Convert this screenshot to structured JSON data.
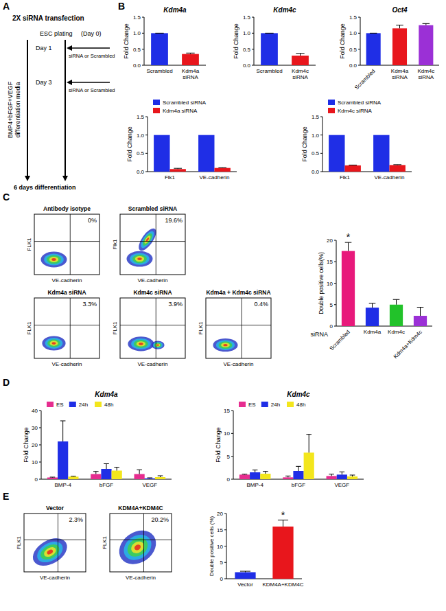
{
  "panel_labels": [
    "A",
    "B",
    "C",
    "D",
    "E"
  ],
  "diagram": {
    "title": "2X siRNA transfection",
    "plating": "ESC plating",
    "plating_day": "(Day 0)",
    "steps": [
      {
        "day": "Day 1",
        "label": "siRNA or Scrambled"
      },
      {
        "day": "Day 3",
        "label": "siRNA or Scrambled"
      }
    ],
    "media": [
      "BMP4+bFGF+VEGF",
      "differentiation media"
    ],
    "end": "6 days differentiation"
  },
  "chart_data": [
    {
      "type": "bar",
      "title": "Kdm4a",
      "y_label": "Fold Change",
      "categories": [
        "Scrambled",
        "Kdm4a siRNA"
      ],
      "values": [
        1,
        0.35
      ],
      "errors": [
        0,
        0.03
      ],
      "colors": [
        "#1f2ee6",
        "#e8161c"
      ],
      "ylim": [
        0,
        1.5
      ],
      "yticks": [
        {
          "value": 0,
          "label": "0.0"
        },
        0.5,
        {
          "value": 1,
          "label": "1.0"
        },
        1.5
      ]
    },
    {
      "type": "bar",
      "title": "Kdm4c",
      "y_label": "Fold Change",
      "categories": [
        "Scrambled",
        "Kdm4c siRNA"
      ],
      "values": [
        1,
        0.3
      ],
      "errors": [
        0,
        0.07
      ],
      "colors": [
        "#1f2ee6",
        "#e8161c"
      ],
      "ylim": [
        0,
        1.5
      ],
      "yticks": [
        {
          "value": 0,
          "label": "0.0"
        },
        0.5,
        {
          "value": 1,
          "label": "1.0"
        },
        1.5
      ]
    },
    {
      "type": "bar",
      "title": "Oct4",
      "y_label": "Fold Change",
      "categories": [
        "Scrambled",
        "Kdm4a siRNA",
        "Kdm4c siRNA"
      ],
      "values": [
        1,
        1.15,
        1.25
      ],
      "errors": [
        0,
        0.1,
        0.05
      ],
      "colors": [
        "#1f2ee6",
        "#e8161c",
        "#9b30d6"
      ],
      "ylim": [
        0,
        1.5
      ],
      "yticks": [
        {
          "value": 0,
          "label": "0.0"
        },
        0.5,
        {
          "value": 1,
          "label": "1.0"
        },
        1.5
      ]
    },
    {
      "type": "bar",
      "y_label": "Fold Change",
      "categories": [
        "Flk1",
        "VE-cadherin"
      ],
      "legend": "top",
      "series": [
        {
          "name": "Scrambled siRNA",
          "color": "#1f2ee6",
          "values": [
            1,
            1
          ]
        },
        {
          "name": "Kdm4a siRNA",
          "color": "#e8161c",
          "values": [
            0.07,
            0.1
          ],
          "errors": [
            0.02,
            0.01
          ]
        }
      ],
      "ylim": [
        0,
        1.5
      ],
      "yticks": [
        {
          "value": 0,
          "label": "0.0"
        },
        0.5,
        {
          "value": 1,
          "label": "1.0"
        },
        1.5
      ]
    },
    {
      "type": "bar",
      "y_label": "Fold Change",
      "categories": [
        "Flk1",
        "VE-cadherin"
      ],
      "legend": "top",
      "series": [
        {
          "name": "Scrambled siRNA",
          "color": "#1f2ee6",
          "values": [
            1,
            1
          ]
        },
        {
          "name": "Kdm4c siRNA",
          "color": "#e8161c",
          "values": [
            0.17,
            0.18
          ],
          "errors": [
            0.01,
            0.01
          ]
        }
      ],
      "ylim": [
        0,
        1.5
      ],
      "yticks": [
        {
          "value": 0,
          "label": "0.0"
        },
        0.5,
        {
          "value": 1,
          "label": "1.0"
        },
        1.5
      ]
    },
    {
      "type": "bar",
      "y_label": "Double positive cells(%)",
      "x_label": "siRNA",
      "categories": [
        "Scrambled",
        "Kdm4a",
        "Kdm4c",
        "Kdm4a+Kdm4c"
      ],
      "values": [
        17.5,
        4.3,
        5.0,
        2.4
      ],
      "errors": [
        2,
        1,
        1.2,
        2
      ],
      "colors": [
        "#e8197b",
        "#1f2ee6",
        "#22c22a",
        "#9b30d6"
      ],
      "ylim": [
        0,
        20
      ],
      "yticks": [
        0,
        5,
        10,
        15,
        20
      ],
      "annotation": "*"
    },
    {
      "type": "bar",
      "title": "Kdm4a",
      "y_label": "Fold Change",
      "categories": [
        "BMP-4",
        "bFGF",
        "VEGF"
      ],
      "legend": "top",
      "series": [
        {
          "name": "ES",
          "color": "#e62d8f",
          "values": [
            1,
            3,
            3
          ],
          "errors": [
            0.2,
            1.5,
            2.5
          ]
        },
        {
          "name": "24h",
          "color": "#1f2ee6",
          "values": [
            22,
            6,
            0.5
          ],
          "errors": [
            12,
            3,
            0.3
          ]
        },
        {
          "name": "48h",
          "color": "#f3e61c",
          "values": [
            1.5,
            5,
            1.2
          ],
          "errors": [
            0.3,
            2,
            0.8
          ]
        }
      ],
      "ylim": [
        0,
        40
      ],
      "yticks": [
        0,
        10,
        20,
        30,
        40
      ]
    },
    {
      "type": "bar",
      "title": "Kdm4c",
      "y_label": "Fold Change",
      "categories": [
        "BMP-4",
        "bFGF",
        "VEGF"
      ],
      "legend": "top",
      "series": [
        {
          "name": "ES",
          "color": "#e62d8f",
          "values": [
            1,
            0.4,
            0.7
          ],
          "errors": [
            0.1,
            0.3,
            0.4
          ]
        },
        {
          "name": "24h",
          "color": "#1f2ee6",
          "values": [
            1.5,
            1.8,
            1
          ],
          "errors": [
            0.5,
            1,
            0.6
          ]
        },
        {
          "name": "48h",
          "color": "#f3e61c",
          "values": [
            1.2,
            5.8,
            0.6
          ],
          "errors": [
            0.5,
            4,
            0.3
          ]
        }
      ],
      "ylim": [
        0,
        15
      ],
      "yticks": [
        0,
        5,
        10,
        15
      ]
    },
    {
      "type": "bar",
      "y_label": "Double positive cells (%)",
      "categories": [
        "Vector",
        "KDM4A+KDM4C"
      ],
      "values": [
        2,
        16
      ],
      "errors": [
        0.3,
        2
      ],
      "colors": [
        "#1f2ee6",
        "#e8161c"
      ],
      "ylim": [
        0,
        20
      ],
      "yticks": [
        0,
        5,
        10,
        15,
        20
      ],
      "annotation": "*"
    }
  ],
  "flow_plots": [
    {
      "title": "Antibody isotype",
      "y_label": "FLK1",
      "x_label": "VE-cadherin",
      "double_positive": "0%"
    },
    {
      "title": "Scrambled siRNA",
      "y_label": "Flk1",
      "x_label": "VE-cadherin",
      "double_positive": "19.6%"
    },
    {
      "title": "Kdm4a siRNA",
      "y_label": "FLK1",
      "x_label": "VE-cadherin",
      "double_positive": "3.3%"
    },
    {
      "title": "Kdm4c siRNA",
      "y_label": "FLK1",
      "x_label": "VE-cadherin",
      "double_positive": "3.9%"
    },
    {
      "title": "Kdm4a + Kdm4c siRNA",
      "y_label": "FLK1",
      "x_label": "VE-cadherin",
      "double_positive": "0.4%"
    },
    {
      "title": "Vector",
      "y_label": "FLK1",
      "x_label": "VE-cadherin",
      "double_positive": "2.3%"
    },
    {
      "title": "KDM4A+KDM4C",
      "y_label": "FLK1",
      "x_label": "VE-cadherin",
      "double_positive": "20.2%"
    }
  ]
}
